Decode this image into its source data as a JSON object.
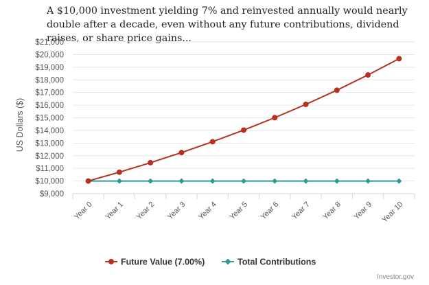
{
  "chart_data": {
    "type": "line",
    "title": "A $10,000 investment yielding 7% and reinvested annually would nearly double after a decade, even without any future contributions, dividend raises, or share price gains...",
    "ylabel": "US Dollars ($)",
    "xlabel": "",
    "categories": [
      "Year 0",
      "Year 1",
      "Year 2",
      "Year 3",
      "Year 4",
      "Year 5",
      "Year 6",
      "Year 7",
      "Year 8",
      "Year 9",
      "Year 10"
    ],
    "ylim": [
      9000,
      21000
    ],
    "yticks": [
      "$9,000",
      "$10,000",
      "$11,000",
      "$12,000",
      "$13,000",
      "$14,000",
      "$15,000",
      "$16,000",
      "$17,000",
      "$18,000",
      "$19,000",
      "$20,000",
      "$21,000"
    ],
    "grid": true,
    "legend_position": "bottom",
    "series": [
      {
        "name": "Future Value (7.00%)",
        "color": "#b5301f",
        "marker": "circle",
        "values": [
          10000,
          10700,
          11449,
          12250,
          13108,
          14026,
          15007,
          16058,
          17182,
          18385,
          19672
        ]
      },
      {
        "name": "Total Contributions",
        "color": "#2e9a92",
        "marker": "diamond",
        "values": [
          10000,
          10000,
          10000,
          10000,
          10000,
          10000,
          10000,
          10000,
          10000,
          10000,
          10000
        ]
      }
    ]
  },
  "credit": "Investor.gov"
}
